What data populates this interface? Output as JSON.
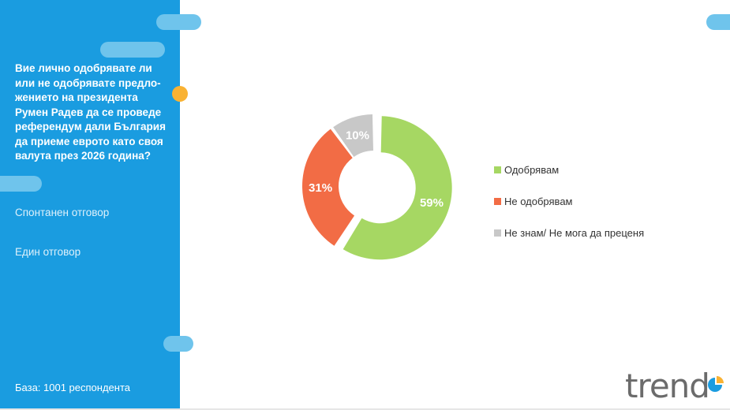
{
  "sidebar": {
    "question": "Вие лично одобрявате ли\nили не одобрявате предло-\nжението на президента\nРумен Радев да се проведе\nреферендум дали България\nда приеме еврото като своя\nвалута през 2026 година?",
    "note_1": "Спонтанен отговор",
    "note_2": "Един отговор",
    "base": "База:  1001 респондента"
  },
  "logo": {
    "text": "trend",
    "icon": "pie-chart-icon"
  },
  "colors": {
    "sidebar": "#1a9ce0",
    "accent_pill": "#6fc4ec",
    "accent_dot": "#f9b233",
    "approve": "#a6d763",
    "disapprove": "#f26c45",
    "dont_know": "#c8c8c8"
  },
  "chart_data": {
    "type": "pie",
    "style": "donut",
    "title": "",
    "categories": [
      "Одобрявам",
      "Не одобрявам",
      "Не знам/ Не мога да преценя"
    ],
    "values": [
      59,
      31,
      10
    ],
    "data_labels": [
      "59%",
      "31%",
      "10%"
    ],
    "colors": [
      "#a6d763",
      "#f26c45",
      "#c8c8c8"
    ],
    "exploded": [
      "Одобрявам"
    ],
    "start": "top",
    "direction": "clockwise",
    "legend_position": "right"
  }
}
